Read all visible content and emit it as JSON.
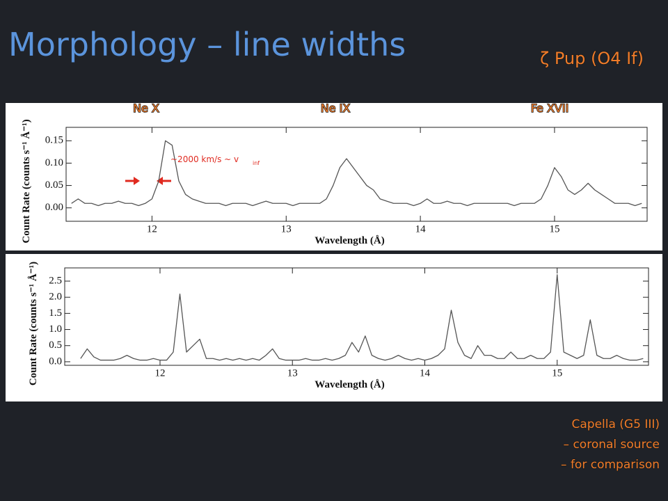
{
  "slide": {
    "title": "Morphology – line widths",
    "subtitle": "ζ Pup (O4 If)",
    "notes": [
      "Capella (G5 III)",
      "– coronal source",
      "– for comparison"
    ]
  },
  "chart_data": [
    {
      "type": "line",
      "xlabel": "Wavelength (Å)",
      "ylabel": "Count Rate (counts s⁻¹ Å⁻¹)",
      "annotations": [
        "Ne X",
        "Ne IX",
        "Fe XVII",
        "~2000 km/s ~ v",
        "inf"
      ],
      "x": [
        11.4,
        11.45,
        11.5,
        11.55,
        11.6,
        11.65,
        11.7,
        11.75,
        11.8,
        11.85,
        11.9,
        11.95,
        12.0,
        12.05,
        12.1,
        12.15,
        12.2,
        12.25,
        12.3,
        12.35,
        12.4,
        12.45,
        12.5,
        12.55,
        12.6,
        12.65,
        12.7,
        12.75,
        12.8,
        12.85,
        12.9,
        12.95,
        13.0,
        13.05,
        13.1,
        13.15,
        13.2,
        13.25,
        13.3,
        13.35,
        13.4,
        13.45,
        13.5,
        13.55,
        13.6,
        13.65,
        13.7,
        13.75,
        13.8,
        13.85,
        13.9,
        13.95,
        14.0,
        14.05,
        14.1,
        14.15,
        14.2,
        14.25,
        14.3,
        14.35,
        14.4,
        14.45,
        14.5,
        14.55,
        14.6,
        14.65,
        14.7,
        14.75,
        14.8,
        14.85,
        14.9,
        14.95,
        15.0,
        15.05,
        15.1,
        15.15,
        15.2,
        15.25,
        15.3,
        15.35,
        15.4,
        15.45,
        15.5,
        15.55,
        15.6,
        15.65
      ],
      "series": [
        {
          "color": "#555555",
          "values": [
            0.01,
            0.02,
            0.01,
            0.01,
            0.005,
            0.01,
            0.01,
            0.015,
            0.01,
            0.01,
            0.005,
            0.01,
            0.02,
            0.06,
            0.15,
            0.14,
            0.06,
            0.03,
            0.02,
            0.015,
            0.01,
            0.01,
            0.01,
            0.005,
            0.01,
            0.01,
            0.01,
            0.005,
            0.01,
            0.015,
            0.01,
            0.01,
            0.01,
            0.005,
            0.01,
            0.01,
            0.01,
            0.01,
            0.02,
            0.05,
            0.09,
            0.11,
            0.09,
            0.07,
            0.05,
            0.04,
            0.02,
            0.015,
            0.01,
            0.01,
            0.01,
            0.005,
            0.01,
            0.02,
            0.01,
            0.01,
            0.015,
            0.01,
            0.01,
            0.005,
            0.01,
            0.01,
            0.01,
            0.01,
            0.01,
            0.01,
            0.005,
            0.01,
            0.01,
            0.01,
            0.02,
            0.05,
            0.09,
            0.07,
            0.04,
            0.03,
            0.04,
            0.055,
            0.04,
            0.03,
            0.02,
            0.01,
            0.01,
            0.01,
            0.005,
            0.01
          ]
        }
      ],
      "xlim": [
        11.36,
        15.69
      ],
      "ylim": [
        -0.03,
        0.18
      ],
      "xticks": [
        12,
        13,
        14,
        15
      ],
      "yticks": [
        {
          "value": 0,
          "label": "0.00"
        },
        0.05,
        {
          "value": 0.1,
          "label": "0.10"
        },
        0.15
      ],
      "grid": false
    },
    {
      "type": "line",
      "xlabel": "Wavelength (Å)",
      "ylabel": "Count Rate (counts s⁻¹ Å⁻¹)",
      "x": [
        11.4,
        11.45,
        11.5,
        11.55,
        11.6,
        11.65,
        11.7,
        11.75,
        11.8,
        11.85,
        11.9,
        11.95,
        12.0,
        12.05,
        12.1,
        12.15,
        12.2,
        12.25,
        12.3,
        12.35,
        12.4,
        12.45,
        12.5,
        12.55,
        12.6,
        12.65,
        12.7,
        12.75,
        12.8,
        12.85,
        12.9,
        12.95,
        13.0,
        13.05,
        13.1,
        13.15,
        13.2,
        13.25,
        13.3,
        13.35,
        13.4,
        13.45,
        13.5,
        13.55,
        13.6,
        13.65,
        13.7,
        13.75,
        13.8,
        13.85,
        13.9,
        13.95,
        14.0,
        14.05,
        14.1,
        14.15,
        14.2,
        14.25,
        14.3,
        14.35,
        14.4,
        14.45,
        14.5,
        14.55,
        14.6,
        14.65,
        14.7,
        14.75,
        14.8,
        14.85,
        14.9,
        14.95,
        15.0,
        15.05,
        15.1,
        15.15,
        15.2,
        15.25,
        15.3,
        15.35,
        15.4,
        15.45,
        15.5,
        15.55,
        15.6,
        15.65
      ],
      "series": [
        {
          "color": "#555555",
          "values": [
            0.1,
            0.4,
            0.15,
            0.05,
            0.05,
            0.05,
            0.1,
            0.2,
            0.1,
            0.05,
            0.05,
            0.1,
            0.05,
            0.05,
            0.3,
            2.1,
            0.3,
            0.5,
            0.7,
            0.1,
            0.1,
            0.05,
            0.1,
            0.05,
            0.1,
            0.05,
            0.1,
            0.05,
            0.2,
            0.4,
            0.1,
            0.05,
            0.05,
            0.05,
            0.1,
            0.05,
            0.05,
            0.1,
            0.05,
            0.1,
            0.2,
            0.6,
            0.3,
            0.8,
            0.2,
            0.1,
            0.05,
            0.1,
            0.2,
            0.1,
            0.05,
            0.1,
            0.05,
            0.1,
            0.2,
            0.4,
            1.6,
            0.6,
            0.2,
            0.1,
            0.5,
            0.2,
            0.2,
            0.1,
            0.1,
            0.3,
            0.1,
            0.1,
            0.2,
            0.1,
            0.1,
            0.3,
            2.7,
            0.3,
            0.2,
            0.1,
            0.2,
            1.3,
            0.2,
            0.1,
            0.1,
            0.2,
            0.1,
            0.05,
            0.05,
            0.1
          ]
        }
      ],
      "xlim": [
        11.28,
        15.69
      ],
      "ylim": [
        -0.11,
        2.91
      ],
      "xticks": [
        12,
        13,
        14,
        15
      ],
      "yticks": [
        {
          "value": 0,
          "label": "0.0"
        },
        0.5,
        {
          "value": 1,
          "label": "1.0"
        },
        1.5,
        {
          "value": 2,
          "label": "2.0"
        },
        2.5
      ],
      "grid": false
    }
  ]
}
